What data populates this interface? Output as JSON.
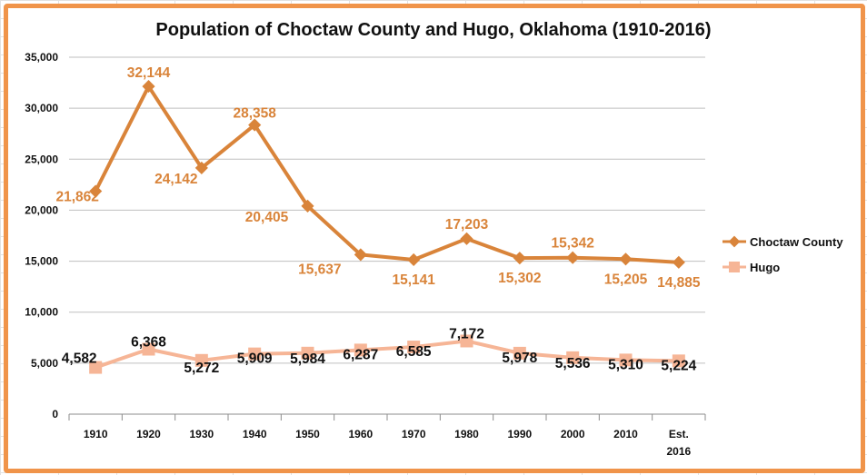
{
  "chart_data": {
    "type": "line",
    "title": "Population of Choctaw County and Hugo, Oklahoma (1910-2016)",
    "xlabel": "",
    "ylabel": "",
    "categories": [
      "1910",
      "1920",
      "1930",
      "1940",
      "1950",
      "1960",
      "1970",
      "1980",
      "1990",
      "2000",
      "2010",
      "Est. 2016"
    ],
    "ylim": [
      0,
      35000
    ],
    "yticks": [
      0,
      5000,
      10000,
      15000,
      20000,
      25000,
      30000,
      35000
    ],
    "ytick_labels": [
      "0",
      "5,000",
      "10,000",
      "15,000",
      "20,000",
      "25,000",
      "30,000",
      "35,000"
    ],
    "grid": "horizontal",
    "legend": "right",
    "series": [
      {
        "name": "Choctaw County",
        "color": "#d9843a",
        "marker": "diamond",
        "values": [
          21862,
          32144,
          24142,
          28358,
          20405,
          15637,
          15141,
          17203,
          15302,
          15342,
          15205,
          14885
        ],
        "labels": [
          "21,862",
          "32,144",
          "24,142",
          "28,358",
          "20,405",
          "15,637",
          "15,141",
          "17,203",
          "15,302",
          "15,342",
          "15,205",
          "14,885"
        ]
      },
      {
        "name": "Hugo",
        "color": "#f6b596",
        "marker": "square",
        "values": [
          4582,
          6368,
          5272,
          5909,
          5984,
          6287,
          6585,
          7172,
          5978,
          5536,
          5310,
          5224
        ],
        "labels": [
          "4,582",
          "6,368",
          "5,272",
          "5,909",
          "5,984",
          "6,287",
          "6,585",
          "7,172",
          "5,978",
          "5,536",
          "5,310",
          "5,224"
        ]
      }
    ]
  }
}
